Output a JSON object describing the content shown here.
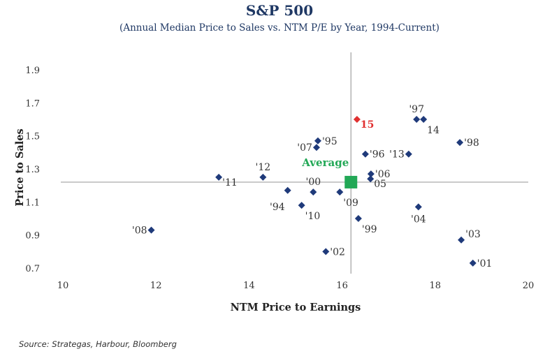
{
  "chart_data": {
    "type": "scatter",
    "title": "S&P 500",
    "subtitle": "(Annual Median Price to Sales vs. NTM P/E by Year, 1994-Current)",
    "xlabel": "NTM Price to Earnings",
    "ylabel": "Price to Sales",
    "xlim": [
      10,
      20
    ],
    "ylim": [
      0.7,
      1.9
    ],
    "xticks": [
      "10",
      "12",
      "14",
      "16",
      "18",
      "20"
    ],
    "yticks": [
      "1.9",
      "1.7",
      "1.5",
      "1.3",
      "1.1",
      "0.9",
      "0.7"
    ],
    "grid": false,
    "colors": {
      "points": "#1f3a7a",
      "highlight": "#e03030",
      "average": "#22a856",
      "reference_lines": "#a0a0a0"
    },
    "points": [
      {
        "label": "'08",
        "x": 11.9,
        "y": 0.93,
        "anchor": "left"
      },
      {
        "label": "'11",
        "x": 13.35,
        "y": 1.25,
        "anchor": "right-low"
      },
      {
        "label": "'12",
        "x": 14.3,
        "y": 1.25,
        "anchor": "above"
      },
      {
        "label": "'94",
        "x": 14.83,
        "y": 1.17,
        "anchor": "below-left"
      },
      {
        "label": "'10",
        "x": 15.13,
        "y": 1.08,
        "anchor": "below-right"
      },
      {
        "label": "'00",
        "x": 15.38,
        "y": 1.16,
        "anchor": "above"
      },
      {
        "label": "'95",
        "x": 15.48,
        "y": 1.47,
        "anchor": "right"
      },
      {
        "label": "'07",
        "x": 15.45,
        "y": 1.43,
        "anchor": "left"
      },
      {
        "label": "'09",
        "x": 15.95,
        "y": 1.16,
        "anchor": "below-right"
      },
      {
        "label": "'02",
        "x": 15.65,
        "y": 0.8,
        "anchor": "right"
      },
      {
        "label": "'99",
        "x": 16.35,
        "y": 1.0,
        "anchor": "below-right"
      },
      {
        "label": "15",
        "x": 16.32,
        "y": 1.6,
        "anchor": "right-low",
        "highlight": true
      },
      {
        "label": "'96",
        "x": 16.5,
        "y": 1.39,
        "anchor": "right"
      },
      {
        "label": "'06",
        "x": 16.62,
        "y": 1.27,
        "anchor": "right"
      },
      {
        "label": "05",
        "x": 16.61,
        "y": 1.24,
        "anchor": "right-low"
      },
      {
        "label": "'13",
        "x": 17.43,
        "y": 1.39,
        "anchor": "left"
      },
      {
        "label": "'97",
        "x": 17.6,
        "y": 1.6,
        "anchor": "above"
      },
      {
        "label": "14",
        "x": 17.75,
        "y": 1.6,
        "anchor": "below-right"
      },
      {
        "label": "'04",
        "x": 17.64,
        "y": 1.07,
        "anchor": "below"
      },
      {
        "label": "'98",
        "x": 18.53,
        "y": 1.46,
        "anchor": "right"
      },
      {
        "label": "'03",
        "x": 18.56,
        "y": 0.87,
        "anchor": "right-high"
      },
      {
        "label": "'01",
        "x": 18.81,
        "y": 0.73,
        "anchor": "right"
      }
    ],
    "average": {
      "label": "Average",
      "x": 16.19,
      "y": 1.22
    }
  },
  "source": "Source: Strategas, Harbour, Bloomberg"
}
